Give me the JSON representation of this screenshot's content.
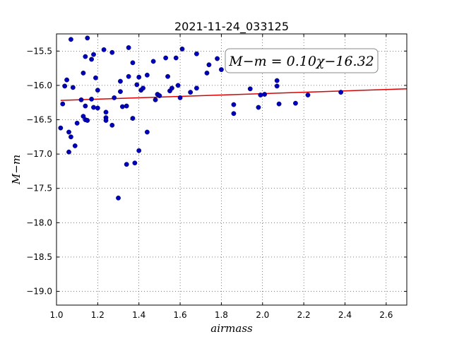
{
  "chart_data": {
    "type": "scatter",
    "title": "2021-11-24_033125",
    "xlabel": "airmass",
    "ylabel": "M−m",
    "xlim": [
      1.0,
      2.7
    ],
    "ylim": [
      -19.2,
      -15.25
    ],
    "y_inverted": true,
    "grid": true,
    "x_ticks": [
      1.0,
      1.2,
      1.4,
      1.6,
      1.8,
      2.0,
      2.2,
      2.4,
      2.6
    ],
    "x_tick_labels": [
      "1.0",
      "1.2",
      "1.4",
      "1.6",
      "1.8",
      "2.0",
      "2.2",
      "2.4",
      "2.6"
    ],
    "y_ticks": [
      -15.5,
      -16.0,
      -16.5,
      -17.0,
      -17.5,
      -18.0,
      -18.5,
      -19.0
    ],
    "y_tick_labels": [
      "−15.5",
      "−16.0",
      "−16.5",
      "−17.0",
      "−17.5",
      "−18.0",
      "−18.5",
      "−19.0"
    ],
    "annotation": "M−m = 0.10χ−16.32",
    "annotation_placement": "top-right",
    "fit_line": {
      "slope": 0.1,
      "intercept": -16.32,
      "color": "#dd0000"
    },
    "series": [
      {
        "marker_color": "#0000bb",
        "points": [
          {
            "x": 1.02,
            "y": -16.62
          },
          {
            "x": 1.03,
            "y": -16.27
          },
          {
            "x": 1.04,
            "y": -16.01
          },
          {
            "x": 1.05,
            "y": -15.92
          },
          {
            "x": 1.06,
            "y": -16.68
          },
          {
            "x": 1.06,
            "y": -16.97
          },
          {
            "x": 1.07,
            "y": -15.33
          },
          {
            "x": 1.07,
            "y": -16.75
          },
          {
            "x": 1.08,
            "y": -16.03
          },
          {
            "x": 1.09,
            "y": -16.88
          },
          {
            "x": 1.1,
            "y": -16.55
          },
          {
            "x": 1.12,
            "y": -16.21
          },
          {
            "x": 1.13,
            "y": -16.45
          },
          {
            "x": 1.13,
            "y": -15.82
          },
          {
            "x": 1.14,
            "y": -15.58
          },
          {
            "x": 1.14,
            "y": -16.5
          },
          {
            "x": 1.14,
            "y": -16.3
          },
          {
            "x": 1.15,
            "y": -15.31
          },
          {
            "x": 1.15,
            "y": -16.51
          },
          {
            "x": 1.17,
            "y": -16.2
          },
          {
            "x": 1.17,
            "y": -15.62
          },
          {
            "x": 1.18,
            "y": -15.55
          },
          {
            "x": 1.18,
            "y": -16.32
          },
          {
            "x": 1.19,
            "y": -15.89
          },
          {
            "x": 1.2,
            "y": -16.07
          },
          {
            "x": 1.2,
            "y": -16.33
          },
          {
            "x": 1.23,
            "y": -15.48
          },
          {
            "x": 1.24,
            "y": -16.39
          },
          {
            "x": 1.24,
            "y": -16.47
          },
          {
            "x": 1.24,
            "y": -16.51
          },
          {
            "x": 1.27,
            "y": -16.58
          },
          {
            "x": 1.27,
            "y": -15.52
          },
          {
            "x": 1.28,
            "y": -16.18
          },
          {
            "x": 1.3,
            "y": -17.64
          },
          {
            "x": 1.31,
            "y": -16.09
          },
          {
            "x": 1.31,
            "y": -15.94
          },
          {
            "x": 1.32,
            "y": -16.31
          },
          {
            "x": 1.34,
            "y": -16.3
          },
          {
            "x": 1.34,
            "y": -17.15
          },
          {
            "x": 1.35,
            "y": -15.45
          },
          {
            "x": 1.35,
            "y": -15.87
          },
          {
            "x": 1.37,
            "y": -16.48
          },
          {
            "x": 1.37,
            "y": -15.67
          },
          {
            "x": 1.38,
            "y": -17.13
          },
          {
            "x": 1.39,
            "y": -15.99
          },
          {
            "x": 1.4,
            "y": -15.88
          },
          {
            "x": 1.4,
            "y": -16.95
          },
          {
            "x": 1.41,
            "y": -16.07
          },
          {
            "x": 1.42,
            "y": -16.04
          },
          {
            "x": 1.44,
            "y": -15.85
          },
          {
            "x": 1.44,
            "y": -16.68
          },
          {
            "x": 1.47,
            "y": -15.65
          },
          {
            "x": 1.48,
            "y": -16.21
          },
          {
            "x": 1.49,
            "y": -16.13
          },
          {
            "x": 1.5,
            "y": -16.15
          },
          {
            "x": 1.53,
            "y": -15.6
          },
          {
            "x": 1.54,
            "y": -15.87
          },
          {
            "x": 1.55,
            "y": -16.08
          },
          {
            "x": 1.56,
            "y": -16.04
          },
          {
            "x": 1.58,
            "y": -15.6
          },
          {
            "x": 1.59,
            "y": -16.0
          },
          {
            "x": 1.6,
            "y": -16.18
          },
          {
            "x": 1.61,
            "y": -15.47
          },
          {
            "x": 1.65,
            "y": -16.1
          },
          {
            "x": 1.68,
            "y": -15.54
          },
          {
            "x": 1.68,
            "y": -16.04
          },
          {
            "x": 1.73,
            "y": -15.82
          },
          {
            "x": 1.74,
            "y": -15.7
          },
          {
            "x": 1.78,
            "y": -15.61
          },
          {
            "x": 1.8,
            "y": -15.77
          },
          {
            "x": 1.86,
            "y": -16.41
          },
          {
            "x": 1.86,
            "y": -16.28
          },
          {
            "x": 1.94,
            "y": -16.05
          },
          {
            "x": 1.98,
            "y": -16.32
          },
          {
            "x": 1.99,
            "y": -16.14
          },
          {
            "x": 2.01,
            "y": -16.13
          },
          {
            "x": 2.07,
            "y": -16.01
          },
          {
            "x": 2.07,
            "y": -15.93
          },
          {
            "x": 2.08,
            "y": -16.27
          },
          {
            "x": 2.16,
            "y": -16.26
          },
          {
            "x": 2.22,
            "y": -16.14
          },
          {
            "x": 2.38,
            "y": -16.1
          }
        ]
      }
    ]
  }
}
